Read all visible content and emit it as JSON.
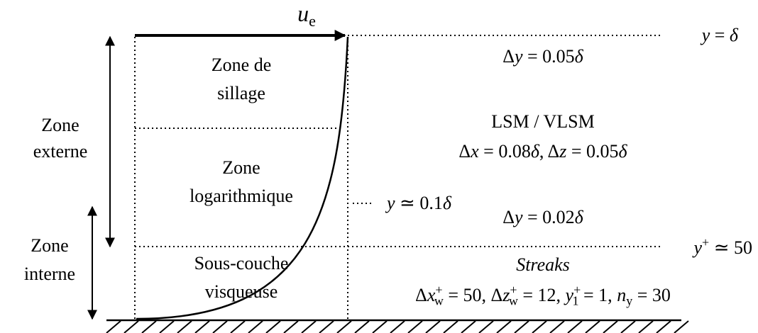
{
  "velocity": [
    {
      "i": "u"
    },
    {
      "sub": "e"
    }
  ],
  "zones": [
    [
      "Zone de",
      "sillage"
    ],
    [
      "Zone",
      "logarithmique"
    ],
    [
      "Sous-couche",
      "visqueuse"
    ]
  ],
  "regions": [
    [
      "Zone",
      "externe"
    ],
    [
      "Zone",
      "interne"
    ]
  ],
  "levels": [
    [
      {
        "i": "y"
      },
      {
        "t": " = "
      },
      {
        "i": "δ"
      }
    ],
    [
      {
        "i": "y"
      },
      {
        "t": " ≃ 0.1"
      },
      {
        "i": "δ"
      }
    ],
    [
      {
        "i": "y"
      },
      {
        "sup": "+"
      },
      {
        "t": " ≃ 50"
      }
    ]
  ],
  "resolution": [
    [
      {
        "t": "Δ"
      },
      {
        "i": "y"
      },
      {
        "t": " = 0.05"
      },
      {
        "i": "δ"
      }
    ],
    [
      {
        "t": "LSM / VLSM"
      }
    ],
    [
      {
        "t": "Δ"
      },
      {
        "i": "x"
      },
      {
        "t": " = 0.08"
      },
      {
        "i": "δ"
      },
      {
        "t": ", Δ"
      },
      {
        "i": "z"
      },
      {
        "t": " = 0.05"
      },
      {
        "i": "δ"
      }
    ],
    [
      {
        "t": "Δ"
      },
      {
        "i": "y"
      },
      {
        "t": " = 0.02"
      },
      {
        "i": "δ"
      }
    ],
    [
      {
        "i": "Streaks"
      }
    ],
    [
      {
        "t": "Δ"
      },
      {
        "i": "x"
      },
      {
        "sup": "+"
      },
      {
        "sub": "w"
      },
      {
        "t": " = 50, Δ"
      },
      {
        "i": "z"
      },
      {
        "sup": "+"
      },
      {
        "sub": "w"
      },
      {
        "t": " = 12, "
      },
      {
        "i": "y"
      },
      {
        "sup": "+"
      },
      {
        "sub": "1"
      },
      {
        "t": " = 1, "
      },
      {
        "i": "n"
      },
      {
        "sub": "y"
      },
      {
        "t": " = 30"
      }
    ]
  ]
}
